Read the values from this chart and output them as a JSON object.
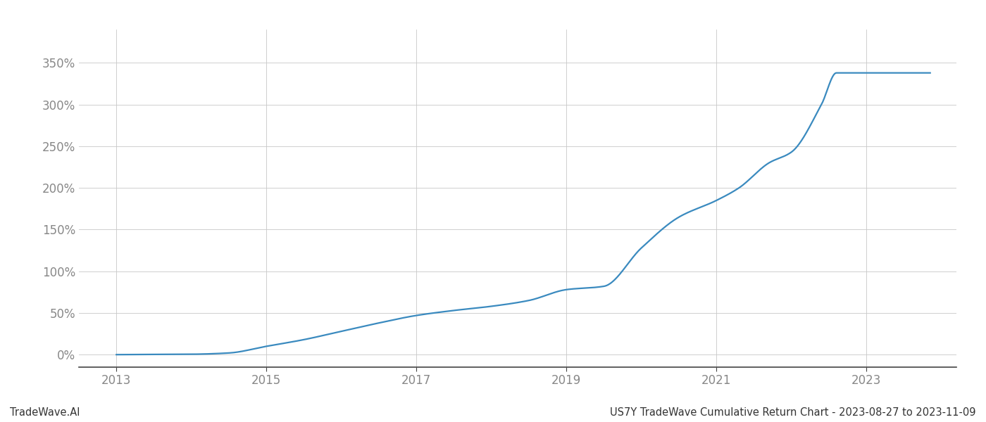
{
  "footer_left": "TradeWave.AI",
  "footer_right": "US7Y TradeWave Cumulative Return Chart - 2023-08-27 to 2023-11-09",
  "line_color": "#3a8abf",
  "background_color": "#ffffff",
  "grid_color": "#c8c8c8",
  "x_years": [
    2013.0,
    2013.5,
    2014.0,
    2014.5,
    2015.0,
    2015.5,
    2016.0,
    2016.5,
    2017.0,
    2017.5,
    2018.0,
    2018.5,
    2019.0,
    2019.5,
    2020.0,
    2020.5,
    2021.0,
    2021.3,
    2021.7,
    2022.0,
    2022.4,
    2022.6,
    2023.0,
    2023.85
  ],
  "y_values": [
    0.0,
    0.3,
    0.5,
    2.0,
    10.0,
    18.0,
    28.0,
    38.0,
    47.0,
    53.0,
    58.0,
    65.0,
    78.0,
    82.0,
    128.0,
    165.0,
    185.0,
    200.0,
    230.0,
    243.0,
    300.0,
    338.0,
    338.0,
    338.0
  ],
  "xlim": [
    2012.5,
    2024.2
  ],
  "ylim": [
    -15,
    390
  ],
  "yticks": [
    0,
    50,
    100,
    150,
    200,
    250,
    300,
    350
  ],
  "ytick_labels": [
    "0%",
    "50%",
    "100%",
    "150%",
    "200%",
    "250%",
    "300%",
    "350%"
  ],
  "xticks": [
    2013,
    2015,
    2017,
    2019,
    2021,
    2023
  ],
  "tick_color": "#888888",
  "line_width": 1.6,
  "figsize": [
    14.0,
    6.0
  ],
  "dpi": 100
}
